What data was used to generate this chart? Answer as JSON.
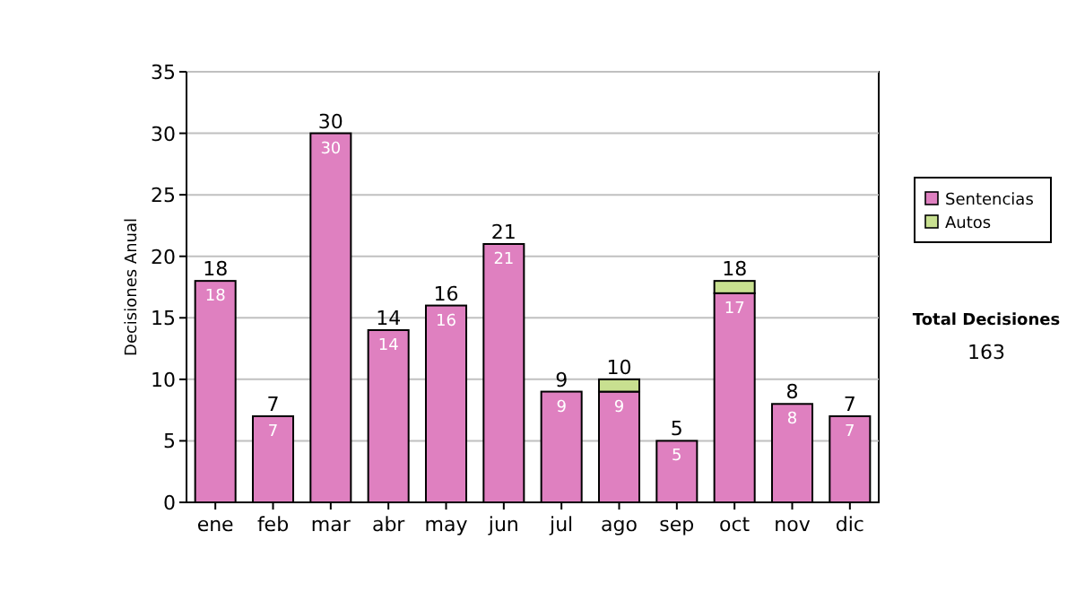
{
  "chart_data": {
    "type": "bar",
    "stacked": true,
    "ylabel": "Decisiones Anual",
    "categories": [
      "ene",
      "feb",
      "mar",
      "abr",
      "may",
      "jun",
      "jul",
      "ago",
      "sep",
      "oct",
      "nov",
      "dic"
    ],
    "series": [
      {
        "name": "Sentencias",
        "color": "#df80c0",
        "values": [
          18,
          7,
          30,
          14,
          16,
          21,
          9,
          9,
          5,
          17,
          8,
          7
        ],
        "value_labels": [
          "18",
          "7",
          "30",
          "14",
          "16",
          "21",
          "9",
          "9",
          "5",
          "17",
          "8",
          "7"
        ]
      },
      {
        "name": "Autos",
        "color": "#c8e090",
        "values": [
          null,
          null,
          null,
          null,
          null,
          null,
          null,
          1,
          null,
          1,
          null,
          null
        ]
      }
    ],
    "totals": [
      "18",
      "7",
      "30",
      "14",
      "16",
      "21",
      "9",
      "10",
      "5",
      "18",
      "8",
      "7"
    ],
    "ylim": [
      0,
      35
    ],
    "yticks": [
      0,
      5,
      10,
      15,
      20,
      25,
      30,
      35
    ],
    "grid": "y",
    "legend": "right",
    "annotations": [
      "Total Decisiones",
      "163"
    ]
  }
}
